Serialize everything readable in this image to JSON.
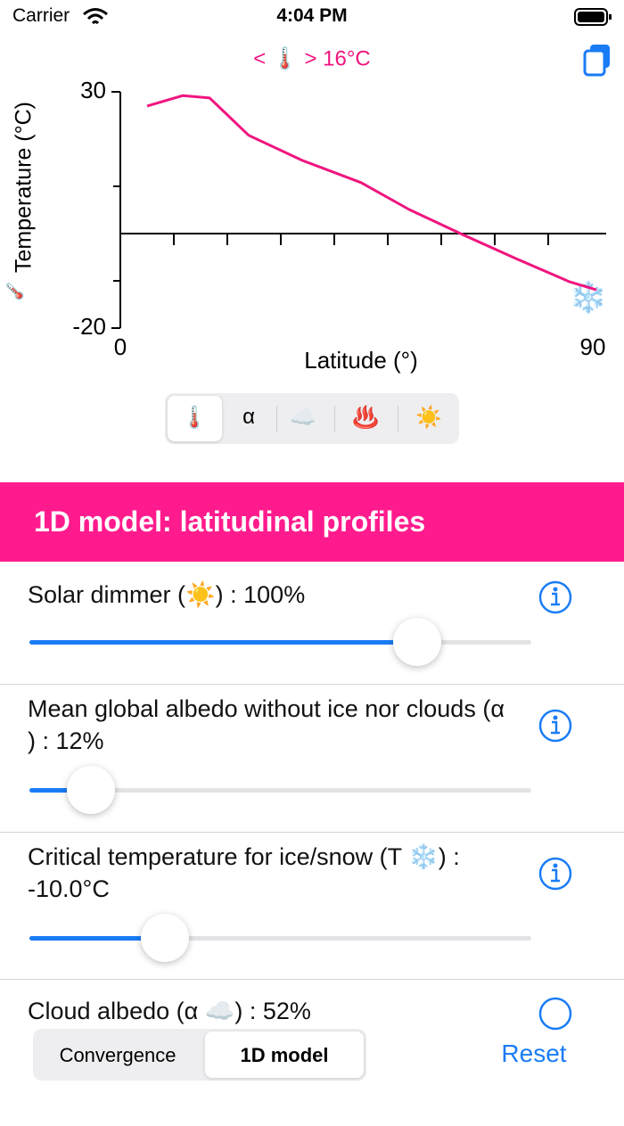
{
  "status_bar": {
    "carrier": "Carrier",
    "time": "4:04 PM"
  },
  "chart_data": {
    "type": "line",
    "title": "< 🌡️ > 16°C",
    "y_label": "Temperature (°C)",
    "y_label_icon": "🌡️",
    "x_label": "Latitude (°)",
    "annotation": "❄️",
    "x": [
      5,
      11.7,
      16.7,
      24,
      34,
      45,
      54,
      64,
      74,
      84,
      89
    ],
    "values": [
      27,
      29.2,
      28.7,
      20.8,
      15.5,
      10.8,
      5.1,
      -0.2,
      -5.3,
      -10.2,
      -11.9
    ],
    "color": "#f0147f",
    "xlim": [
      0,
      90
    ],
    "ylim": [
      -20,
      30
    ],
    "xticks": [
      0,
      90
    ],
    "yticks": [
      30,
      -20
    ],
    "x_minor_ticks": [
      10,
      20,
      30,
      40,
      50,
      60,
      70,
      80
    ],
    "y_minor_ticks": [
      10,
      -10
    ]
  },
  "tabs": [
    "🌡️",
    "α",
    "☁️",
    "♨️",
    "☀️"
  ],
  "header": {
    "title": "1D model: latitudinal profiles"
  },
  "controls": [
    {
      "label": "Solar dimmer (☀️) : 100%"
    },
    {
      "label": "Mean global albedo without ice nor clouds (α ) : 12%"
    },
    {
      "label": "Critical temperature for ice/snow (T ❄️) : -10.0°C"
    },
    {
      "label": "Cloud albedo (α ☁️) : 52%"
    }
  ],
  "bottom_bar": {
    "segments": [
      "Convergence",
      "1D model"
    ],
    "reset": "Reset"
  }
}
